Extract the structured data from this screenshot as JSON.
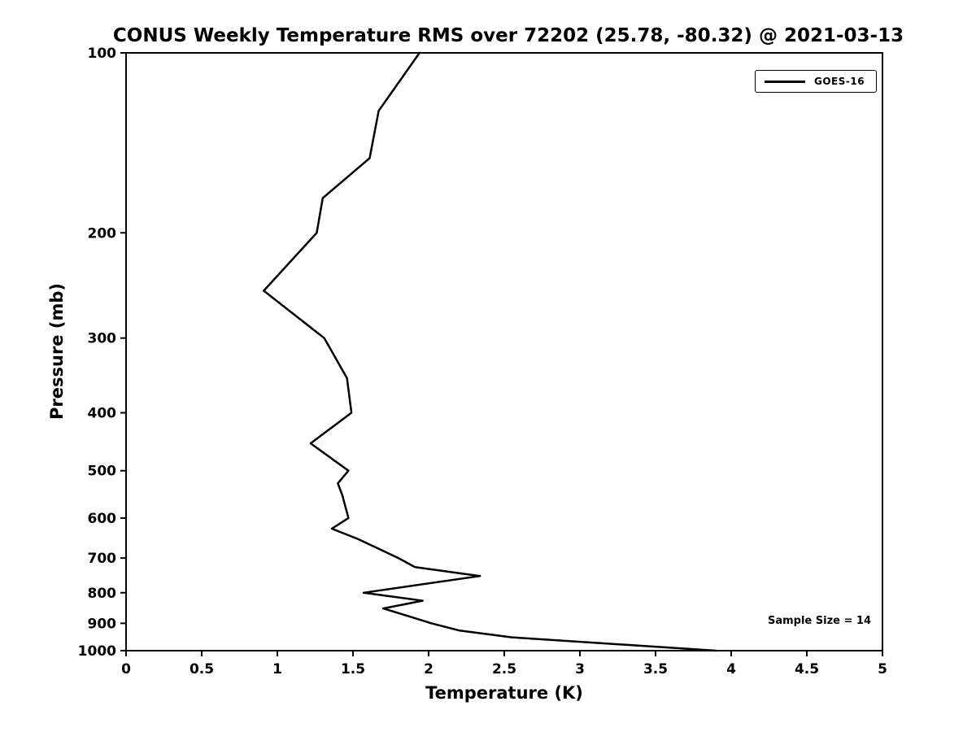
{
  "chart_data": {
    "type": "line",
    "title": "CONUS Weekly Temperature RMS over 72202 (25.78, -80.32) @ 2021-03-13",
    "xlabel": "Temperature (K)",
    "ylabel": "Pressure (mb)",
    "xlim": [
      0,
      5
    ],
    "x_ticks": [
      0,
      0.5,
      1,
      1.5,
      2,
      2.5,
      3,
      3.5,
      4,
      4.5,
      5
    ],
    "ylim": [
      100,
      1000
    ],
    "y_ticks": [
      100,
      200,
      300,
      400,
      500,
      600,
      700,
      800,
      900,
      1000
    ],
    "y_scale": "log",
    "y_inverted": true,
    "grid": false,
    "legend_position": "top-right",
    "line_width": 2.5,
    "axis_color": "#000000",
    "series": [
      {
        "name": "GOES-16",
        "color": "#000000",
        "points": [
          {
            "pressure_mb": 100,
            "rms_k": 1.94
          },
          {
            "pressure_mb": 125,
            "rms_k": 1.67
          },
          {
            "pressure_mb": 150,
            "rms_k": 1.61
          },
          {
            "pressure_mb": 175,
            "rms_k": 1.3
          },
          {
            "pressure_mb": 200,
            "rms_k": 1.26
          },
          {
            "pressure_mb": 250,
            "rms_k": 0.91
          },
          {
            "pressure_mb": 300,
            "rms_k": 1.31
          },
          {
            "pressure_mb": 350,
            "rms_k": 1.46
          },
          {
            "pressure_mb": 400,
            "rms_k": 1.49
          },
          {
            "pressure_mb": 450,
            "rms_k": 1.22
          },
          {
            "pressure_mb": 500,
            "rms_k": 1.47
          },
          {
            "pressure_mb": 525,
            "rms_k": 1.4
          },
          {
            "pressure_mb": 550,
            "rms_k": 1.43
          },
          {
            "pressure_mb": 600,
            "rms_k": 1.47
          },
          {
            "pressure_mb": 625,
            "rms_k": 1.36
          },
          {
            "pressure_mb": 650,
            "rms_k": 1.53
          },
          {
            "pressure_mb": 700,
            "rms_k": 1.8
          },
          {
            "pressure_mb": 725,
            "rms_k": 1.91
          },
          {
            "pressure_mb": 750,
            "rms_k": 2.34
          },
          {
            "pressure_mb": 800,
            "rms_k": 1.57
          },
          {
            "pressure_mb": 825,
            "rms_k": 1.96
          },
          {
            "pressure_mb": 850,
            "rms_k": 1.7
          },
          {
            "pressure_mb": 900,
            "rms_k": 2.02
          },
          {
            "pressure_mb": 925,
            "rms_k": 2.2
          },
          {
            "pressure_mb": 950,
            "rms_k": 2.55
          },
          {
            "pressure_mb": 1000,
            "rms_k": 3.9
          }
        ]
      }
    ],
    "annotations": [
      "Sample Size = 14"
    ]
  }
}
